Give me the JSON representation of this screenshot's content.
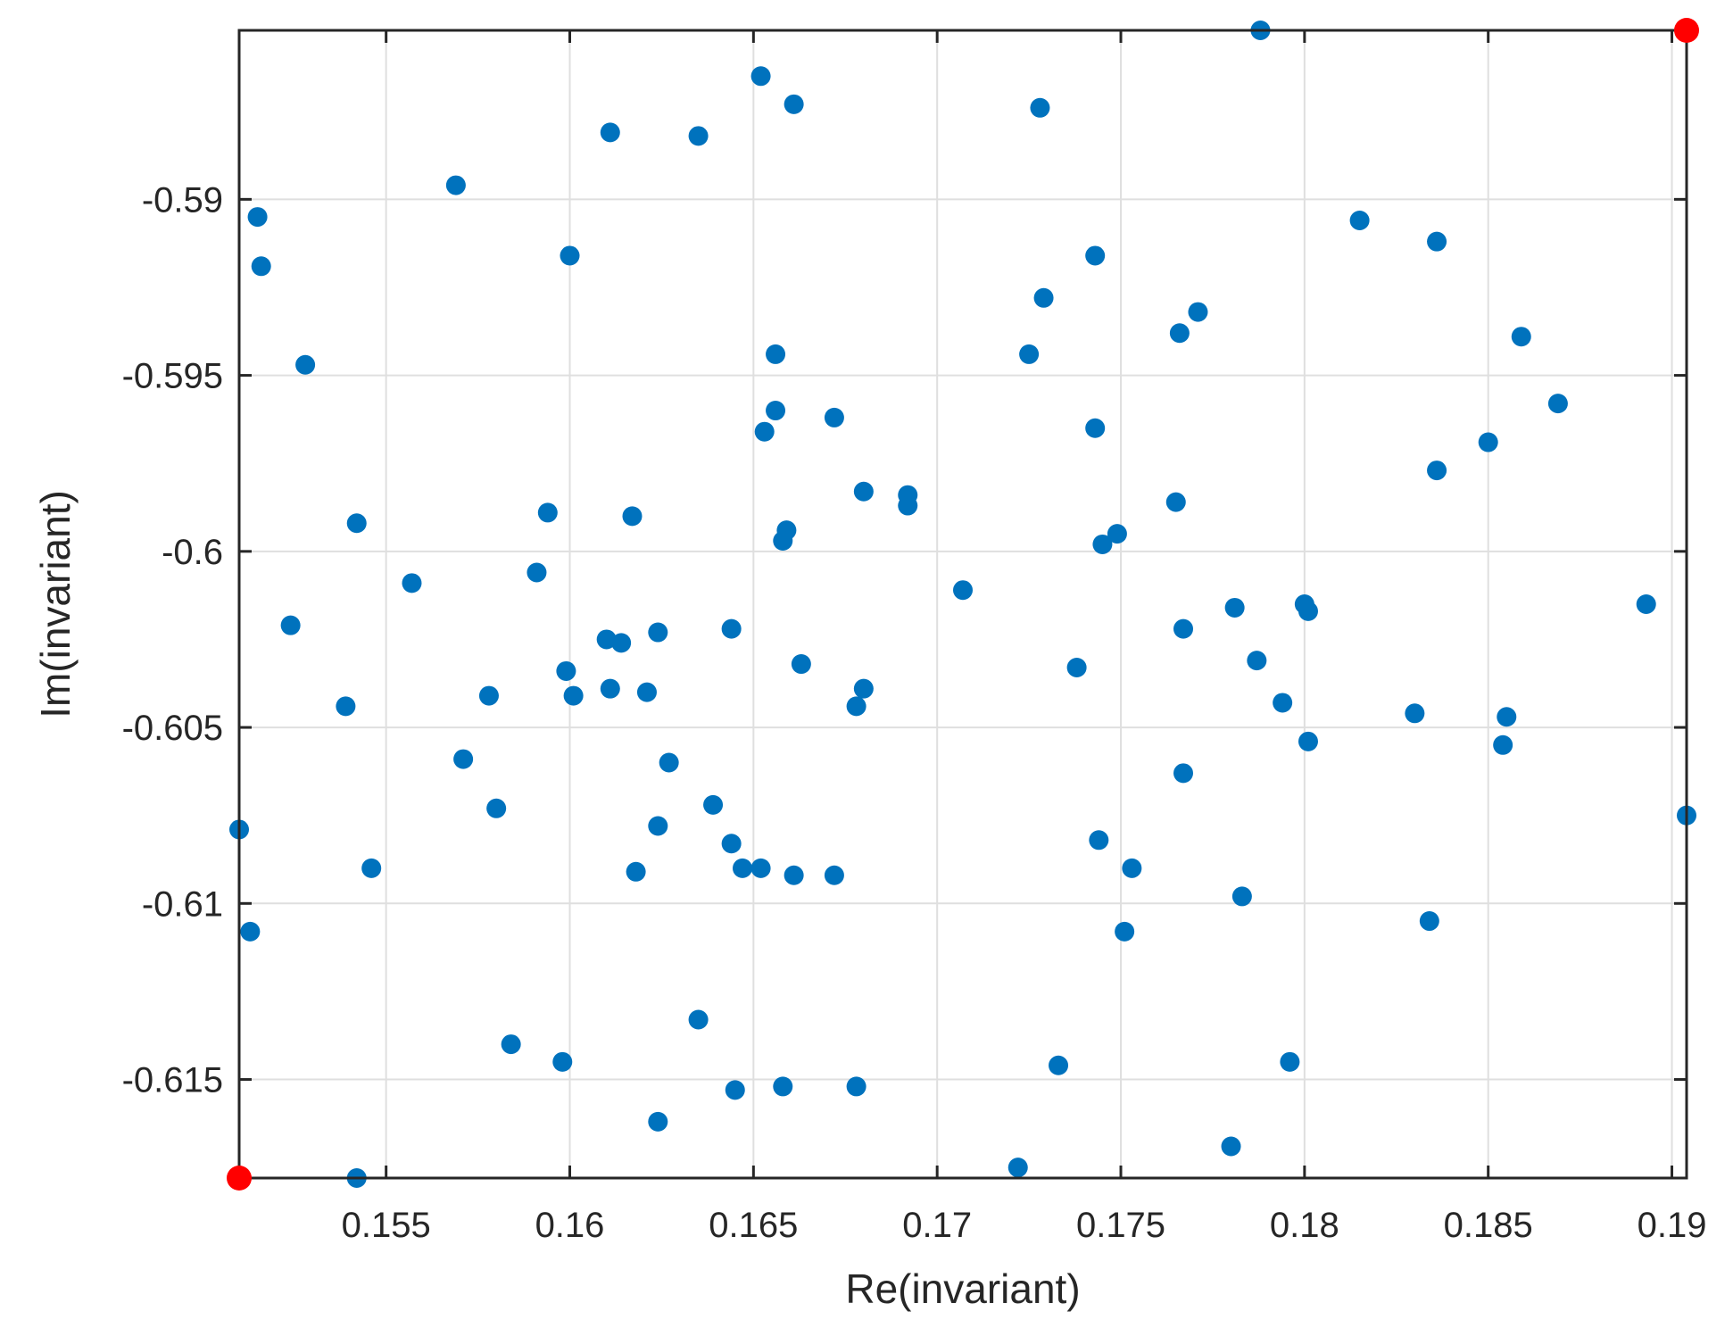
{
  "chart_data": {
    "type": "scatter",
    "title": "",
    "xlabel": "Re(invariant)",
    "ylabel": "Im(invariant)",
    "xlim": [
      0.151,
      0.1904
    ],
    "ylim": [
      -0.6178,
      -0.5852
    ],
    "grid": true,
    "box": true,
    "x_ticks": [
      0.155,
      0.16,
      0.165,
      0.17,
      0.175,
      0.18,
      0.185,
      0.19
    ],
    "x_tick_labels": [
      "0.155",
      "0.16",
      "0.165",
      "0.17",
      "0.175",
      "0.18",
      "0.185",
      "0.19"
    ],
    "y_ticks": [
      -0.59,
      -0.595,
      -0.6,
      -0.605,
      -0.61,
      -0.615
    ],
    "y_tick_labels": [
      "-0.59",
      "-0.595",
      "-0.6",
      "-0.605",
      "-0.61",
      "-0.615"
    ],
    "colors": {
      "series": "#0072BD",
      "highlight": "#FF0000",
      "axis": "#262626",
      "grid": "#DFDFDF"
    },
    "series": [
      {
        "marker": "filled-circle",
        "color": "#0072BD",
        "points": [
          [
            0.1788,
            -0.5852
          ],
          [
            0.1652,
            -0.5865
          ],
          [
            0.1661,
            -0.5873
          ],
          [
            0.1728,
            -0.5874
          ],
          [
            0.1611,
            -0.5881
          ],
          [
            0.1635,
            -0.5882
          ],
          [
            0.1569,
            -0.5896
          ],
          [
            0.1515,
            -0.5905
          ],
          [
            0.1516,
            -0.5919
          ],
          [
            0.1815,
            -0.5906
          ],
          [
            0.1836,
            -0.5912
          ],
          [
            0.16,
            -0.5916
          ],
          [
            0.1743,
            -0.5916
          ],
          [
            0.1729,
            -0.5928
          ],
          [
            0.1771,
            -0.5932
          ],
          [
            0.1766,
            -0.5938
          ],
          [
            0.1859,
            -0.5939
          ],
          [
            0.1528,
            -0.5947
          ],
          [
            0.1656,
            -0.5944
          ],
          [
            0.1725,
            -0.5944
          ],
          [
            0.1656,
            -0.596
          ],
          [
            0.1672,
            -0.5962
          ],
          [
            0.1869,
            -0.5958
          ],
          [
            0.1653,
            -0.5966
          ],
          [
            0.1743,
            -0.5965
          ],
          [
            0.185,
            -0.5969
          ],
          [
            0.1836,
            -0.5977
          ],
          [
            0.168,
            -0.5983
          ],
          [
            0.1692,
            -0.5984
          ],
          [
            0.1692,
            -0.5987
          ],
          [
            0.1765,
            -0.5986
          ],
          [
            0.1594,
            -0.5989
          ],
          [
            0.1617,
            -0.599
          ],
          [
            0.1542,
            -0.5992
          ],
          [
            0.1659,
            -0.5994
          ],
          [
            0.1658,
            -0.5997
          ],
          [
            0.1749,
            -0.5995
          ],
          [
            0.1745,
            -0.5998
          ],
          [
            0.1591,
            -0.6006
          ],
          [
            0.1557,
            -0.6009
          ],
          [
            0.1707,
            -0.6011
          ],
          [
            0.1524,
            -0.6021
          ],
          [
            0.1893,
            -0.6015
          ],
          [
            0.1781,
            -0.6016
          ],
          [
            0.18,
            -0.6015
          ],
          [
            0.1801,
            -0.6017
          ],
          [
            0.1767,
            -0.6022
          ],
          [
            0.1624,
            -0.6023
          ],
          [
            0.1644,
            -0.6022
          ],
          [
            0.161,
            -0.6025
          ],
          [
            0.1614,
            -0.6026
          ],
          [
            0.1787,
            -0.6031
          ],
          [
            0.1663,
            -0.6032
          ],
          [
            0.1738,
            -0.6033
          ],
          [
            0.1599,
            -0.6034
          ],
          [
            0.1611,
            -0.6039
          ],
          [
            0.168,
            -0.6039
          ],
          [
            0.1578,
            -0.6041
          ],
          [
            0.1601,
            -0.6041
          ],
          [
            0.1621,
            -0.604
          ],
          [
            0.1539,
            -0.6044
          ],
          [
            0.1678,
            -0.6044
          ],
          [
            0.1794,
            -0.6043
          ],
          [
            0.183,
            -0.6046
          ],
          [
            0.1855,
            -0.6047
          ],
          [
            0.1801,
            -0.6054
          ],
          [
            0.1854,
            -0.6055
          ],
          [
            0.1571,
            -0.6059
          ],
          [
            0.1627,
            -0.606
          ],
          [
            0.1767,
            -0.6063
          ],
          [
            0.1639,
            -0.6072
          ],
          [
            0.158,
            -0.6073
          ],
          [
            0.1624,
            -0.6078
          ],
          [
            0.151,
            -0.6079
          ],
          [
            0.1904,
            -0.6075
          ],
          [
            0.1744,
            -0.6082
          ],
          [
            0.1644,
            -0.6083
          ],
          [
            0.1546,
            -0.609
          ],
          [
            0.1647,
            -0.609
          ],
          [
            0.1652,
            -0.609
          ],
          [
            0.1618,
            -0.6091
          ],
          [
            0.1661,
            -0.6092
          ],
          [
            0.1672,
            -0.6092
          ],
          [
            0.1753,
            -0.609
          ],
          [
            0.1783,
            -0.6098
          ],
          [
            0.1834,
            -0.6105
          ],
          [
            0.1513,
            -0.6108
          ],
          [
            0.1751,
            -0.6108
          ],
          [
            0.1635,
            -0.6133
          ],
          [
            0.1584,
            -0.614
          ],
          [
            0.1598,
            -0.6145
          ],
          [
            0.1733,
            -0.6146
          ],
          [
            0.1796,
            -0.6145
          ],
          [
            0.1645,
            -0.6153
          ],
          [
            0.1658,
            -0.6152
          ],
          [
            0.1678,
            -0.6152
          ],
          [
            0.1624,
            -0.6162
          ],
          [
            0.178,
            -0.6169
          ],
          [
            0.1722,
            -0.6175
          ],
          [
            0.1542,
            -0.6178
          ]
        ]
      },
      {
        "marker": "filled-circle",
        "color": "#FF0000",
        "points": [
          [
            0.151,
            -0.6178
          ],
          [
            0.1904,
            -0.5852
          ]
        ]
      }
    ]
  }
}
